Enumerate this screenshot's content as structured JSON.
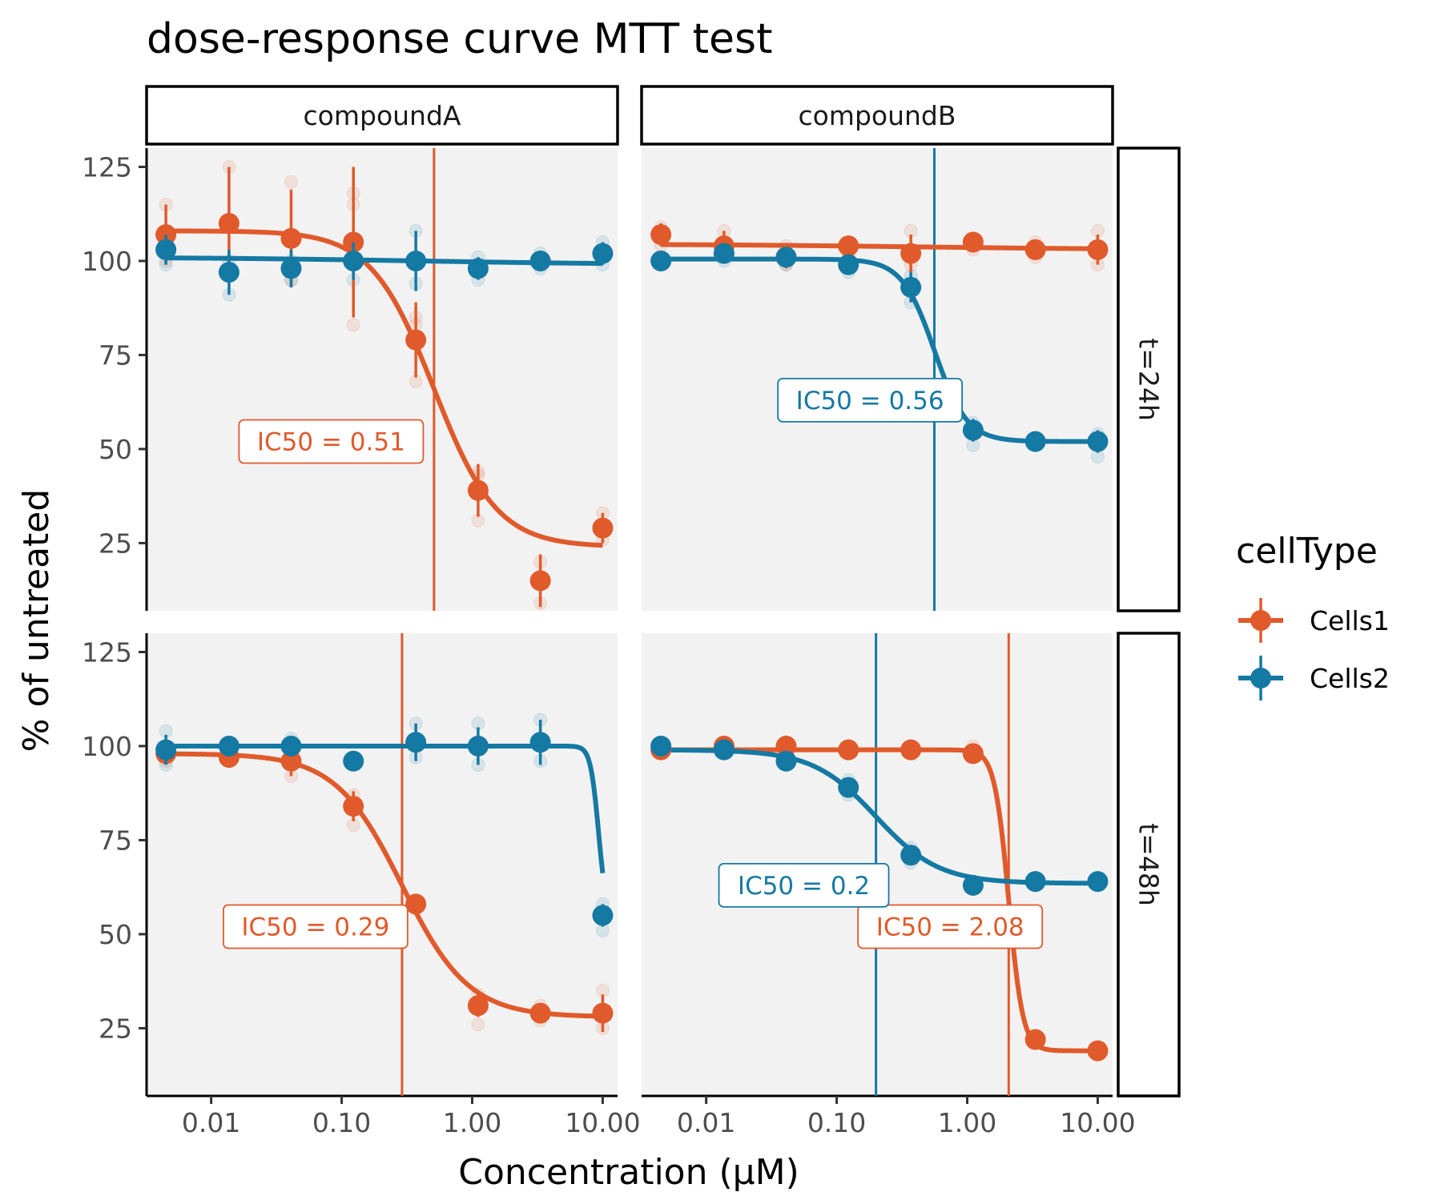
{
  "chart_data": {
    "type": "scatter",
    "title": "dose-response curve MTT test",
    "xlabel": "Concentration (µM)",
    "ylabel": "% of untreated",
    "x_scale": "log10",
    "xlim": [
      0.0032,
      13
    ],
    "ylim": [
      7,
      130
    ],
    "x_ticks": [
      0.01,
      0.1,
      1,
      10
    ],
    "x_tick_labels": [
      "0.01",
      "0.10",
      "1.00",
      "10.00"
    ],
    "y_ticks": [
      25,
      50,
      75,
      100,
      125
    ],
    "y_tick_labels": [
      "25",
      "50",
      "75",
      "100",
      "125"
    ],
    "grid": false,
    "panel_background": "#f2f2f2",
    "legend": {
      "title": "cellType",
      "position": "right",
      "entries": [
        {
          "name": "Cells1",
          "color": "#e05a2b"
        },
        {
          "name": "Cells2",
          "color": "#1479a3"
        }
      ]
    },
    "facet_cols": [
      "compoundA",
      "compoundB"
    ],
    "facet_rows": [
      "t=24h",
      "t=48h"
    ],
    "panels": [
      {
        "col": "compoundA",
        "row": "t=24h",
        "series": [
          {
            "name": "Cells1",
            "color": "#e05a2b",
            "x": [
              0.0045,
              0.0137,
              0.041,
              0.123,
              0.37,
              1.11,
              3.33,
              10
            ],
            "y": [
              107,
              110,
              106,
              105,
              79,
              39,
              15,
              29
            ],
            "err": [
              8,
              15,
              13,
              20,
              10,
              7,
              7,
              4
            ],
            "replicates": [
              [
                100,
                115
              ],
              [
                98,
                125
              ],
              [
                95,
                121
              ],
              [
                83,
                115,
                118
              ],
              [
                68,
                83,
                85
              ],
              [
                31,
                43,
                44
              ],
              [
                9,
                20
              ],
              [
                26,
                33
              ]
            ],
            "curve": {
              "top": 108,
              "bottom": 24,
              "ic50": 0.51,
              "hill": 1.8
            },
            "ic50_value": 0.51,
            "ic50_label": "IC50 =  0.51",
            "label_pos": [
              0.083,
              52
            ]
          },
          {
            "name": "Cells2",
            "color": "#1479a3",
            "x": [
              0.0045,
              0.0137,
              0.041,
              0.123,
              0.37,
              1.11,
              3.33,
              10
            ],
            "y": [
              103,
              97,
              98,
              100,
              100,
              98,
              100,
              102
            ],
            "err": [
              4,
              6,
              5,
              5,
              8,
              3,
              2,
              3
            ],
            "replicates": [
              [
                99,
                106
              ],
              [
                91,
                100
              ],
              [
                95,
                100
              ],
              [
                95,
                104
              ],
              [
                94,
                108
              ],
              [
                95,
                101
              ],
              [
                98,
                102
              ],
              [
                99,
                105
              ]
            ],
            "curve": {
              "top": 101,
              "bottom": 99,
              "ic50": 0.4,
              "hill": 0.5
            },
            "ic50_value": null
          }
        ]
      },
      {
        "col": "compoundB",
        "row": "t=24h",
        "series": [
          {
            "name": "Cells1",
            "color": "#e05a2b",
            "x": [
              0.0045,
              0.0137,
              0.041,
              0.123,
              0.37,
              1.11,
              3.33,
              10
            ],
            "y": [
              107,
              104,
              101,
              104,
              102,
              105,
              103,
              103
            ],
            "err": [
              3,
              4,
              3,
              2,
              5,
              2,
              2,
              4
            ],
            "replicates": [
              [
                104,
                109
              ],
              [
                101,
                108
              ],
              [
                99,
                104
              ],
              [
                102,
                105
              ],
              [
                99,
                108
              ],
              [
                103,
                106
              ],
              [
                101,
                105
              ],
              [
                99,
                108
              ]
            ],
            "curve": {
              "top": 104.5,
              "bottom": 103,
              "ic50": 0.4,
              "hill": 0.5
            },
            "ic50_value": null
          },
          {
            "name": "Cells2",
            "color": "#1479a3",
            "x": [
              0.0045,
              0.0137,
              0.041,
              0.123,
              0.37,
              1.11,
              3.33,
              10
            ],
            "y": [
              100,
              102,
              101,
              99,
              93,
              55,
              52,
              52
            ],
            "err": [
              2,
              2,
              2,
              2,
              4,
              3,
              2,
              3
            ],
            "replicates": [
              [
                99,
                101
              ],
              [
                100,
                103
              ],
              [
                99,
                102
              ],
              [
                97,
                101
              ],
              [
                89,
                96
              ],
              [
                51,
                57
              ],
              [
                51,
                53
              ],
              [
                48,
                54
              ]
            ],
            "curve": {
              "top": 100.5,
              "bottom": 52,
              "ic50": 0.56,
              "hill": 3.5
            },
            "ic50_value": 0.56,
            "ic50_label": "IC50 =  0.56",
            "label_pos": [
              0.18,
              63
            ]
          }
        ]
      },
      {
        "col": "compoundA",
        "row": "t=48h",
        "series": [
          {
            "name": "Cells1",
            "color": "#e05a2b",
            "x": [
              0.0045,
              0.0137,
              0.041,
              0.123,
              0.37,
              1.11,
              3.33,
              10
            ],
            "y": [
              98,
              97,
              96,
              84,
              58,
              31,
              29,
              29
            ],
            "err": [
              2,
              2,
              4,
              4,
              2,
              3,
              2,
              5
            ],
            "replicates": [
              [
                96,
                99
              ],
              [
                96,
                99
              ],
              [
                92,
                99
              ],
              [
                79,
                87
              ],
              [
                57,
                59
              ],
              [
                26,
                34
              ],
              [
                27,
                31
              ],
              [
                25,
                35
              ]
            ],
            "curve": {
              "top": 98,
              "bottom": 28,
              "ic50": 0.29,
              "hill": 1.7
            },
            "ic50_value": 0.29,
            "ic50_label": "IC50 =  0.29",
            "label_pos": [
              0.063,
              52
            ]
          },
          {
            "name": "Cells2",
            "color": "#1479a3",
            "x": [
              0.0045,
              0.0137,
              0.041,
              0.123,
              0.37,
              1.11,
              3.33,
              10
            ],
            "y": [
              99,
              100,
              100,
              96,
              101,
              100,
              101,
              55
            ],
            "err": [
              4,
              2,
              2,
              1,
              5,
              5,
              6,
              3
            ],
            "replicates": [
              [
                95,
                104
              ],
              [
                99,
                101
              ],
              [
                98,
                102
              ],
              [
                96,
                96
              ],
              [
                97,
                106
              ],
              [
                95,
                106
              ],
              [
                96,
                107
              ],
              [
                51,
                58
              ]
            ],
            "curve": {
              "top": 100,
              "bottom": 54,
              "ic50": 9.3,
              "hill": 14
            },
            "ic50_value": null
          }
        ]
      },
      {
        "col": "compoundB",
        "row": "t=48h",
        "series": [
          {
            "name": "Cells1",
            "color": "#e05a2b",
            "x": [
              0.0045,
              0.0137,
              0.041,
              0.123,
              0.37,
              1.11,
              3.33,
              10
            ],
            "y": [
              99,
              100,
              100,
              99,
              99,
              98,
              22,
              19
            ],
            "err": [
              1,
              1,
              1,
              1,
              1,
              2,
              1,
              1
            ],
            "replicates": [
              [
                98,
                100
              ],
              [
                99,
                101
              ],
              [
                99,
                101
              ],
              [
                98,
                100
              ],
              [
                98,
                100
              ],
              [
                97,
                100
              ],
              [
                21,
                23
              ],
              [
                18,
                20
              ]
            ],
            "curve": {
              "top": 99,
              "bottom": 19,
              "ic50": 2.08,
              "hill": 8
            },
            "ic50_value": 2.08,
            "ic50_label": "IC50 =  2.08",
            "label_pos": [
              0.74,
              52
            ]
          },
          {
            "name": "Cells2",
            "color": "#1479a3",
            "x": [
              0.0045,
              0.0137,
              0.041,
              0.123,
              0.37,
              1.11,
              3.33,
              10
            ],
            "y": [
              100,
              99,
              96,
              89,
              71,
              63,
              64,
              64
            ],
            "err": [
              1,
              1,
              1,
              2,
              2,
              1,
              1,
              1
            ],
            "replicates": [
              [
                99,
                101
              ],
              [
                98,
                100
              ],
              [
                95,
                97
              ],
              [
                87,
                91
              ],
              [
                69,
                73
              ],
              [
                62,
                64
              ],
              [
                63,
                65
              ],
              [
                63,
                65
              ]
            ],
            "curve": {
              "top": 99,
              "bottom": 63.5,
              "ic50": 0.2,
              "hill": 1.8
            },
            "ic50_value": 0.2,
            "ic50_label": "IC50 =  0.2",
            "label_pos": [
              0.056,
              63
            ]
          }
        ]
      }
    ]
  }
}
